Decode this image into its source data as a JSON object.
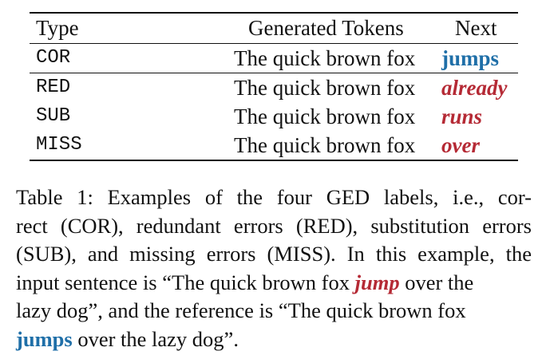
{
  "colors": {
    "correct": "#1f6fa8",
    "error": "#b52a35",
    "text": "#111111"
  },
  "table": {
    "headers": {
      "type": "Type",
      "tokens": "Generated Tokens",
      "next": "Next"
    },
    "rows": [
      {
        "type": "COR",
        "tokens": "The quick brown fox",
        "next": "jumps",
        "status": "correct"
      },
      {
        "type": "RED",
        "tokens": "The quick brown fox",
        "next": "already",
        "status": "error"
      },
      {
        "type": "SUB",
        "tokens": "The quick brown fox",
        "next": "runs",
        "status": "error"
      },
      {
        "type": "MISS",
        "tokens": "The quick brown fox",
        "next": "over",
        "status": "error"
      }
    ]
  },
  "caption": {
    "line1": "Table 1: Examples of the four GED labels, i.e., cor-",
    "line2": "rect (COR), redundant errors (RED), substitution errors",
    "line3": "(SUB), and missing errors (MISS). In this example, the",
    "line4_pre": "input sentence is “The quick brown fox ",
    "line4_bad": "jump",
    "line4_post": " over the",
    "line5": "lazy dog”, and the reference is “The quick brown fox",
    "line6_good": "jumps",
    "line6_post": " over the lazy dog”."
  }
}
